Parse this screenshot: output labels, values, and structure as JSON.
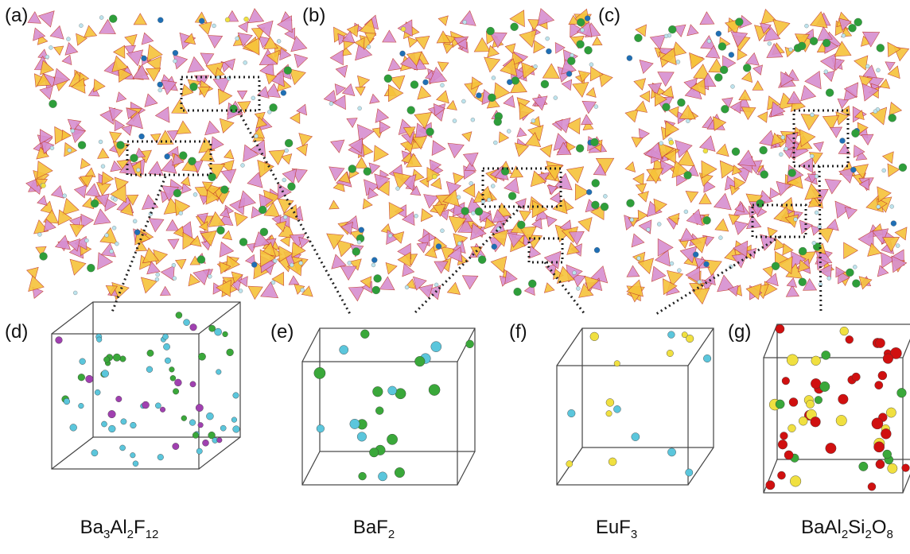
{
  "panels": [
    {
      "label": "(a)"
    },
    {
      "label": "(b)"
    },
    {
      "label": "(c)"
    }
  ],
  "structures": [
    {
      "label": "(d)",
      "formula": [
        {
          "text": "Ba",
          "sub": "3"
        },
        {
          "text": "Al",
          "sub": "2"
        },
        {
          "text": "F",
          "sub": "12"
        }
      ]
    },
    {
      "label": "(e)",
      "formula": [
        {
          "text": "Ba"
        },
        {
          "text": "F",
          "sub": "2"
        }
      ]
    },
    {
      "label": "(f)",
      "formula": [
        {
          "text": "Eu"
        },
        {
          "text": "F",
          "sub": "3"
        }
      ]
    },
    {
      "label": "(g)",
      "formula": [
        {
          "text": "Ba"
        },
        {
          "text": "Al",
          "sub": "2"
        },
        {
          "text": "Si",
          "sub": "2"
        },
        {
          "text": "O",
          "sub": "8"
        }
      ]
    }
  ]
}
